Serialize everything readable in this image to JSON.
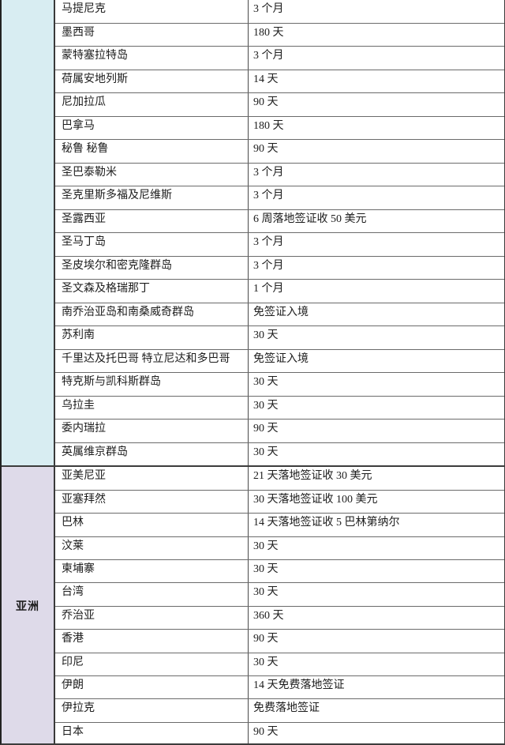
{
  "page": {
    "background": "#ffffff",
    "grid_line_color": "#6b6b6b",
    "outer_border_color": "#3c3c3c"
  },
  "table": {
    "columns": [
      "region",
      "country",
      "visa_duration"
    ],
    "sections": [
      {
        "region_label": "",
        "region_bg": "#d8edf2",
        "rows": [
          {
            "country": "马提尼克",
            "duration": "3 个月"
          },
          {
            "country": "墨西哥",
            "duration": "180 天"
          },
          {
            "country": "蒙特塞拉特岛",
            "duration": "3 个月"
          },
          {
            "country": "荷属安地列斯",
            "duration": "14 天"
          },
          {
            "country": "尼加拉瓜",
            "duration": "90 天"
          },
          {
            "country": "巴拿马",
            "duration": "180 天"
          },
          {
            "country": "秘鲁 秘鲁",
            "duration": "90 天"
          },
          {
            "country": "圣巴泰勒米",
            "duration": "3 个月"
          },
          {
            "country": "圣克里斯多福及尼维斯",
            "duration": "3 个月"
          },
          {
            "country": "圣露西亚",
            "duration": "6 周落地签证收 50 美元"
          },
          {
            "country": "圣马丁岛",
            "duration": "3 个月"
          },
          {
            "country": "圣皮埃尔和密克隆群岛",
            "duration": "3 个月"
          },
          {
            "country": "圣文森及格瑞那丁",
            "duration": "1 个月"
          },
          {
            "country": "南乔治亚岛和南桑威奇群岛",
            "duration": "免签证入境"
          },
          {
            "country": "苏利南",
            "duration": "30 天"
          },
          {
            "country": "千里达及托巴哥 特立尼达和多巴哥",
            "duration": "免签证入境"
          },
          {
            "country": "特克斯与凯科斯群岛",
            "duration": "30 天"
          },
          {
            "country": "乌拉圭",
            "duration": "30 天"
          },
          {
            "country": "委内瑞拉",
            "duration": "90 天"
          },
          {
            "country": "英属维京群岛",
            "duration": "30 天"
          }
        ]
      },
      {
        "region_label": "亚洲",
        "region_bg": "#dedae9",
        "rows": [
          {
            "country": "亚美尼亚",
            "duration": "21 天落地签证收 30 美元"
          },
          {
            "country": "亚塞拜然",
            "duration": "30 天落地签证收 100 美元"
          },
          {
            "country": "巴林",
            "duration": "14 天落地签证收 5 巴林第纳尔"
          },
          {
            "country": "汶莱",
            "duration": "30 天"
          },
          {
            "country": "柬埔寨",
            "duration": "30 天"
          },
          {
            "country": "台湾",
            "duration": "30 天"
          },
          {
            "country": "乔治亚",
            "duration": "360 天"
          },
          {
            "country": "香港",
            "duration": "90 天"
          },
          {
            "country": "印尼",
            "duration": "30 天"
          },
          {
            "country": "伊朗",
            "duration": "14 天免费落地签证"
          },
          {
            "country": "伊拉克",
            "duration": "免费落地签证"
          },
          {
            "country": "日本",
            "duration": "90 天"
          }
        ]
      }
    ]
  }
}
